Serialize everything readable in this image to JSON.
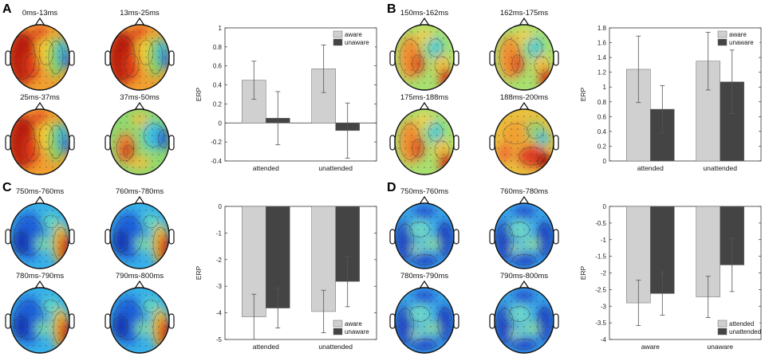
{
  "panels": [
    {
      "letter": "A",
      "maps": [
        {
          "label": "0ms-13ms",
          "pattern": "warm-left"
        },
        {
          "label": "13ms-25ms",
          "pattern": "warm-left"
        },
        {
          "label": "25ms-37ms",
          "pattern": "warm-left"
        },
        {
          "label": "37ms-50ms",
          "pattern": "mixed"
        }
      ]
    },
    {
      "letter": "B",
      "maps": [
        {
          "label": "150ms-162ms",
          "pattern": "mixed-warm"
        },
        {
          "label": "162ms-175ms",
          "pattern": "mixed-warm"
        },
        {
          "label": "175ms-188ms",
          "pattern": "mixed-warm"
        },
        {
          "label": "188ms-200ms",
          "pattern": "warm-bottom"
        }
      ]
    },
    {
      "letter": "C",
      "maps": [
        {
          "label": "750ms-760ms",
          "pattern": "cool-right-hot"
        },
        {
          "label": "760ms-780ms",
          "pattern": "cool-right-hot"
        },
        {
          "label": "780ms-790ms",
          "pattern": "cool-right-hot"
        },
        {
          "label": "790ms-800ms",
          "pattern": "cool-right-hot"
        }
      ]
    },
    {
      "letter": "D",
      "maps": [
        {
          "label": "750ms-760ms",
          "pattern": "cool"
        },
        {
          "label": "760ms-780ms",
          "pattern": "cool"
        },
        {
          "label": "780ms-790ms",
          "pattern": "cool"
        },
        {
          "label": "790ms-800ms",
          "pattern": "cool"
        }
      ]
    }
  ],
  "chart_data": [
    {
      "panel": "A",
      "type": "bar",
      "categories": [
        "attended",
        "unattended"
      ],
      "series": [
        {
          "name": "aware",
          "values": [
            0.45,
            0.57
          ],
          "errors": [
            0.2,
            0.25
          ],
          "color": "#d0d0d0"
        },
        {
          "name": "unaware",
          "values": [
            0.05,
            -0.08
          ],
          "errors": [
            0.28,
            0.29
          ],
          "color": "#444444"
        }
      ],
      "ylabel": "ERP",
      "ylim": [
        -0.4,
        1
      ],
      "yticks": [
        1,
        0.8,
        0.6,
        0.4,
        0.2,
        0,
        -0.2,
        -0.4
      ],
      "ytick_labels": [
        "1",
        "0.8",
        "0.6",
        "0.4",
        "0.2",
        "0",
        "-0.2",
        "-0.4"
      ],
      "legend": "top-right"
    },
    {
      "panel": "B",
      "type": "bar",
      "categories": [
        "attended",
        "unattended"
      ],
      "series": [
        {
          "name": "aware",
          "values": [
            1.24,
            1.35
          ],
          "errors": [
            0.45,
            0.39
          ],
          "color": "#d0d0d0"
        },
        {
          "name": "unaware",
          "values": [
            0.7,
            1.07
          ],
          "errors": [
            0.32,
            0.43
          ],
          "color": "#444444"
        }
      ],
      "ylabel": "ERP",
      "ylim": [
        0,
        1.8
      ],
      "yticks": [
        1.8,
        1.6,
        1.4,
        1.2,
        1,
        0.8,
        0.6,
        0.4,
        0.2,
        0
      ],
      "ytick_labels": [
        "1.8",
        "1.6",
        "1.4",
        "1.2",
        "1",
        "0.8",
        "0.6",
        "0.4",
        "0.2",
        "0"
      ],
      "legend": "top-right"
    },
    {
      "panel": "C",
      "type": "bar",
      "categories": [
        "attended",
        "unattended"
      ],
      "series": [
        {
          "name": "aware",
          "values": [
            -4.15,
            -3.95
          ],
          "errors": [
            0.85,
            0.8
          ],
          "color": "#d0d0d0"
        },
        {
          "name": "unaware",
          "values": [
            -3.82,
            -2.82
          ],
          "errors": [
            0.75,
            0.95
          ],
          "color": "#444444"
        }
      ],
      "ylabel": "ERP",
      "ylim": [
        -5,
        0
      ],
      "yticks": [
        0,
        -1,
        -2,
        -3,
        -4,
        -5
      ],
      "ytick_labels": [
        "0",
        "-1",
        "-2",
        "-3",
        "-4",
        "-5"
      ],
      "legend": "bottom-right"
    },
    {
      "panel": "D",
      "type": "bar",
      "categories": [
        "aware",
        "unaware"
      ],
      "series": [
        {
          "name": "attended",
          "values": [
            -2.9,
            -2.72
          ],
          "errors": [
            0.68,
            0.62
          ],
          "color": "#d0d0d0"
        },
        {
          "name": "unattended",
          "values": [
            -2.62,
            -1.76
          ],
          "errors": [
            0.65,
            0.8
          ],
          "color": "#444444"
        }
      ],
      "ylabel": "ERP",
      "ylim": [
        -4,
        0
      ],
      "yticks": [
        0,
        -0.5,
        -1,
        -1.5,
        -2,
        -2.5,
        -3,
        -3.5,
        -4
      ],
      "ytick_labels": [
        "0",
        "-0.5",
        "-1",
        "-1.5",
        "-2",
        "-2.5",
        "-3",
        "-3.5",
        "-4"
      ],
      "legend": "bottom-right"
    }
  ],
  "colors": {
    "axis": "#333333",
    "bar_outline": "#666666",
    "error_bar": "#555555"
  }
}
